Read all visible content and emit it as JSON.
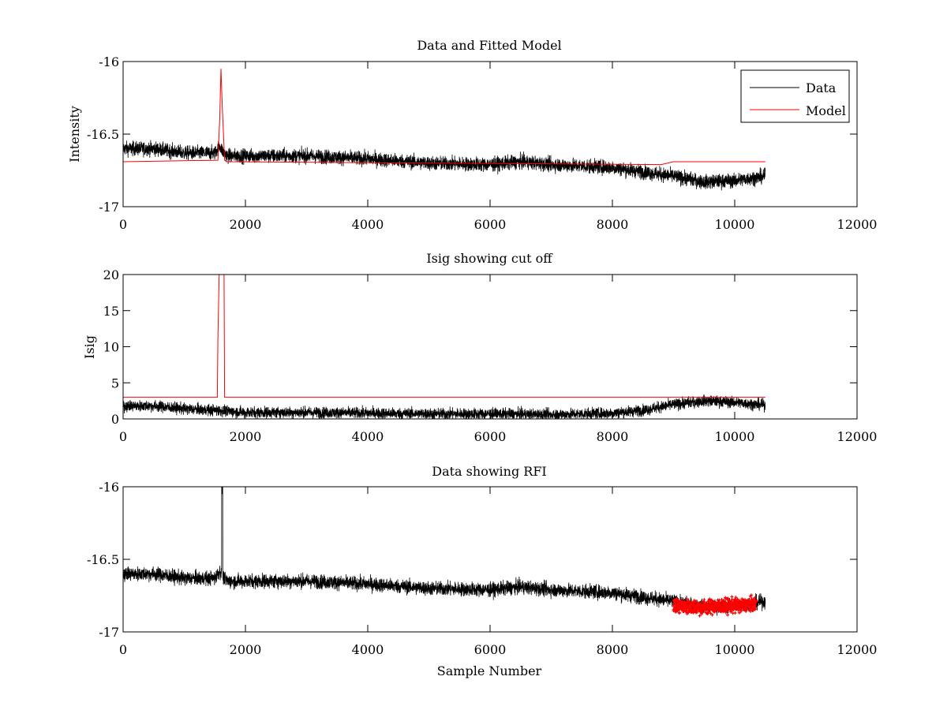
{
  "colors": {
    "data": "#000000",
    "model": "#ff0000",
    "rfi": "#ff0000",
    "axes": "#000000",
    "background": "#ffffff"
  },
  "chart_data": [
    {
      "type": "line",
      "title": "Data and Fitted Model",
      "xlabel": "",
      "ylabel": "Intensity",
      "xlim": [
        0,
        12000
      ],
      "ylim": [
        -17,
        -16
      ],
      "xticks": [
        "0",
        "2000",
        "4000",
        "6000",
        "8000",
        "10000",
        "12000"
      ],
      "yticks": [
        "-17",
        "-16.5",
        "-16"
      ],
      "grid": false,
      "legend": {
        "position": "top-right",
        "entries": [
          "Data",
          "Model"
        ]
      },
      "series": [
        {
          "name": "Data",
          "style": "noisy-line",
          "x": [
            0,
            500,
            1000,
            1500,
            1580,
            1630,
            1700,
            2000,
            3000,
            4000,
            5000,
            6000,
            6500,
            7000,
            8000,
            8500,
            9000,
            9500,
            10000,
            10500
          ],
          "y": [
            -16.6,
            -16.6,
            -16.63,
            -16.63,
            -16.58,
            -16.62,
            -16.65,
            -16.65,
            -16.65,
            -16.67,
            -16.7,
            -16.71,
            -16.69,
            -16.71,
            -16.73,
            -16.76,
            -16.79,
            -16.83,
            -16.82,
            -16.79
          ],
          "noise": 0.05
        },
        {
          "name": "Model",
          "x": [
            0,
            1550,
            1580,
            1600,
            1620,
            1660,
            1700,
            8800,
            9000,
            10000,
            10500
          ],
          "y": [
            -16.69,
            -16.68,
            -16.4,
            -16.05,
            -16.3,
            -16.68,
            -16.69,
            -16.71,
            -16.69,
            -16.69,
            -16.69
          ]
        }
      ]
    },
    {
      "type": "line",
      "title": "Isig showing cut off",
      "xlabel": "",
      "ylabel": "Isig",
      "xlim": [
        0,
        12000
      ],
      "ylim": [
        0,
        20
      ],
      "xticks": [
        "0",
        "2000",
        "4000",
        "6000",
        "8000",
        "10000",
        "12000"
      ],
      "yticks": [
        "0",
        "5",
        "10",
        "15",
        "20"
      ],
      "grid": false,
      "series": [
        {
          "style": "noisy-line",
          "x": [
            0,
            500,
            1000,
            1500,
            2000,
            3000,
            4000,
            5000,
            6000,
            7000,
            8000,
            8500,
            9000,
            9500,
            10000,
            10500
          ],
          "y": [
            1.8,
            1.8,
            1.4,
            1.2,
            0.9,
            0.9,
            0.8,
            0.7,
            0.7,
            0.6,
            0.8,
            1.2,
            2.0,
            2.5,
            2.3,
            1.9
          ],
          "noise": 0.8
        },
        {
          "x": [
            0,
            1540,
            1550,
            1570,
            1600,
            1650,
            1660,
            1670,
            10500
          ],
          "y": [
            3,
            3,
            11,
            20,
            20,
            20,
            3,
            3,
            3
          ]
        }
      ]
    },
    {
      "type": "line",
      "title": "Data showing RFI",
      "xlabel": "Sample Number",
      "ylabel": "",
      "xlim": [
        0,
        12000
      ],
      "ylim": [
        -17,
        -16
      ],
      "xticks": [
        "0",
        "2000",
        "4000",
        "6000",
        "8000",
        "10000",
        "12000"
      ],
      "yticks": [
        "-17",
        "-16.5",
        "-16"
      ],
      "grid": false,
      "series": [
        {
          "style": "noisy-line",
          "x": [
            0,
            500,
            1000,
            1500,
            1580,
            1630,
            1700,
            2000,
            3000,
            4000,
            5000,
            6000,
            6500,
            7000,
            8000,
            8500,
            9000,
            9500,
            10000,
            10500
          ],
          "y": [
            -16.6,
            -16.6,
            -16.63,
            -16.63,
            -16.58,
            -16.62,
            -16.65,
            -16.65,
            -16.65,
            -16.67,
            -16.7,
            -16.71,
            -16.69,
            -16.71,
            -16.73,
            -16.76,
            -16.79,
            -16.83,
            -16.82,
            -16.79
          ],
          "noise": 0.05,
          "spike": {
            "x": 1620,
            "y": -16.05
          }
        },
        {
          "style": "markers",
          "x_range": [
            9000,
            10350
          ],
          "y": [
            -16.82,
            -16.83,
            -16.82,
            -16.81
          ],
          "noise": 0.05
        }
      ]
    }
  ]
}
